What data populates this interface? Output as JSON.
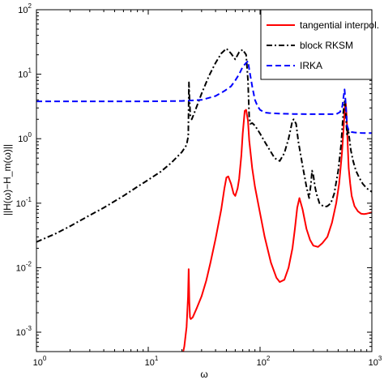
{
  "chart_data": {
    "type": "line",
    "xscale": "log",
    "yscale": "log",
    "xlim": [
      1,
      1000
    ],
    "ylim": [
      0.0005,
      100
    ],
    "xlabel": "ω",
    "ylabel": "||H(ω)−H_m(ω)||",
    "x_tick_labels": [
      {
        "value": 1,
        "base": "10",
        "exp": "0"
      },
      {
        "value": 10,
        "base": "10",
        "exp": "1"
      },
      {
        "value": 100,
        "base": "10",
        "exp": "2"
      },
      {
        "value": 1000,
        "base": "10",
        "exp": "3"
      }
    ],
    "y_tick_labels": [
      {
        "value": 0.001,
        "base": "10",
        "exp": "-3"
      },
      {
        "value": 0.01,
        "base": "10",
        "exp": "-2"
      },
      {
        "value": 0.1,
        "base": "10",
        "exp": "-1"
      },
      {
        "value": 1,
        "base": "10",
        "exp": "0"
      },
      {
        "value": 10,
        "base": "10",
        "exp": "1"
      },
      {
        "value": 100,
        "base": "10",
        "exp": "2"
      }
    ],
    "legend_position": "top-right",
    "grid": false,
    "series": [
      {
        "name": "tangential interpol.",
        "color": "#ff0000",
        "dash": "solid",
        "x": [
          20,
          21,
          22,
          22.7,
          23,
          23.3,
          23.6,
          24,
          25,
          27,
          30,
          33,
          36,
          40,
          45,
          48,
          50,
          52,
          55,
          58,
          60,
          63,
          65,
          68,
          70,
          73,
          75,
          78,
          80,
          85,
          90,
          100,
          110,
          125,
          140,
          150,
          165,
          180,
          195,
          205,
          215,
          225,
          240,
          260,
          280,
          300,
          330,
          360,
          400,
          440,
          480,
          510,
          540,
          560,
          575,
          585,
          595,
          610,
          620,
          640,
          660,
          700,
          750,
          800,
          850,
          900,
          1000
        ],
        "y": [
          0.0004,
          0.0006,
          0.0012,
          0.0035,
          0.0095,
          0.003,
          0.0017,
          0.0016,
          0.0017,
          0.0023,
          0.0036,
          0.0063,
          0.012,
          0.028,
          0.08,
          0.17,
          0.25,
          0.26,
          0.2,
          0.14,
          0.13,
          0.17,
          0.24,
          0.55,
          1.2,
          2.7,
          2.8,
          1.9,
          0.95,
          0.35,
          0.18,
          0.07,
          0.03,
          0.012,
          0.007,
          0.006,
          0.0065,
          0.01,
          0.02,
          0.04,
          0.085,
          0.12,
          0.08,
          0.04,
          0.027,
          0.022,
          0.021,
          0.024,
          0.03,
          0.05,
          0.1,
          0.2,
          0.6,
          1.5,
          3.2,
          3.5,
          2.2,
          0.7,
          0.35,
          0.2,
          0.13,
          0.09,
          0.075,
          0.069,
          0.068,
          0.069,
          0.072
        ]
      },
      {
        "name": "block RKSM",
        "color": "#000000",
        "dash": "dashdot",
        "x": [
          1,
          1.5,
          2,
          3,
          4,
          6,
          8,
          10,
          13,
          16,
          20,
          22,
          22.8,
          23.1,
          23.4,
          23.8,
          24.5,
          26,
          30,
          35,
          40,
          45,
          50,
          55,
          60,
          65,
          70,
          75,
          78,
          80,
          82,
          85,
          90,
          100,
          110,
          120,
          135,
          150,
          165,
          180,
          195,
          200,
          210,
          220,
          240,
          260,
          275,
          285,
          292,
          300,
          310,
          320,
          340,
          360,
          380,
          400,
          430,
          460,
          500,
          530,
          555,
          570,
          580,
          590,
          600,
          615,
          630,
          650,
          680,
          720,
          770,
          830,
          900,
          1000
        ],
        "y": [
          0.025,
          0.034,
          0.044,
          0.065,
          0.085,
          0.13,
          0.18,
          0.23,
          0.31,
          0.42,
          0.62,
          0.8,
          1.1,
          7.5,
          4.0,
          2.2,
          2.0,
          2.6,
          5.0,
          9.5,
          15,
          21,
          25,
          21,
          17,
          22,
          24,
          20,
          8,
          2.2,
          1.7,
          1.75,
          1.6,
          1.2,
          0.9,
          0.7,
          0.5,
          0.45,
          0.6,
          1.0,
          1.9,
          2.0,
          1.7,
          0.9,
          0.38,
          0.18,
          0.12,
          0.2,
          0.32,
          0.27,
          0.18,
          0.14,
          0.1,
          0.092,
          0.088,
          0.09,
          0.1,
          0.14,
          0.32,
          0.8,
          2.5,
          3.8,
          3.2,
          1.8,
          1.1,
          1.4,
          1.0,
          0.65,
          0.45,
          0.32,
          0.25,
          0.2,
          0.17,
          0.15
        ]
      },
      {
        "name": "IRKA",
        "color": "#0000ff",
        "dash": "dashed",
        "x": [
          1,
          2,
          5,
          10,
          20,
          30,
          40,
          48,
          55,
          60,
          65,
          70,
          75,
          78,
          80,
          85,
          90,
          95,
          100,
          110,
          120,
          150,
          200,
          300,
          400,
          480,
          520,
          545,
          560,
          570,
          580,
          590,
          600,
          620,
          640,
          660,
          700,
          750,
          800,
          900,
          1000
        ],
        "y": [
          3.8,
          3.8,
          3.8,
          3.8,
          3.85,
          4.0,
          4.6,
          5.5,
          6.5,
          8.0,
          10,
          13,
          15,
          16,
          12,
          6.5,
          4.0,
          3.2,
          2.8,
          2.55,
          2.5,
          2.45,
          2.42,
          2.4,
          2.4,
          2.4,
          2.6,
          3.2,
          4.6,
          5.8,
          4.0,
          2.6,
          1.6,
          1.35,
          1.3,
          1.27,
          1.25,
          1.24,
          1.23,
          1.22,
          1.22
        ]
      }
    ]
  }
}
